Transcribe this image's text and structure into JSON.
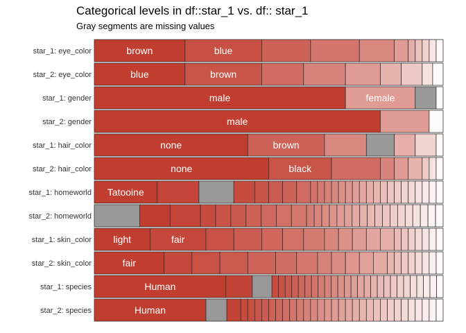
{
  "chart_data": {
    "type": "stacked-bar-horizontal-proportion",
    "title": "Categorical levels in df::star_1 vs. df:: star_1",
    "subtitle": "Gray segments are missing values",
    "xlim": [
      0,
      1
    ],
    "colors": {
      "base": "#c0392b",
      "missing": "#999999",
      "border": "#333333",
      "text_dark": "#ffffff",
      "text_light": "#777777"
    },
    "rows": [
      {
        "label": "star_1: eye_color",
        "segments": [
          {
            "value": 0.26,
            "label": "brown"
          },
          {
            "value": 0.22,
            "label": "blue"
          },
          {
            "value": 0.14
          },
          {
            "value": 0.14
          },
          {
            "value": 0.1
          },
          {
            "value": 0.04
          },
          {
            "value": 0.02
          },
          {
            "value": 0.02
          },
          {
            "value": 0.02
          },
          {
            "value": 0.02
          },
          {
            "value": 0.02
          }
        ]
      },
      {
        "label": "star_2: eye_color",
        "segments": [
          {
            "value": 0.26,
            "label": "blue"
          },
          {
            "value": 0.22,
            "label": "brown"
          },
          {
            "value": 0.12
          },
          {
            "value": 0.12
          },
          {
            "value": 0.1
          },
          {
            "value": 0.06
          },
          {
            "value": 0.06
          },
          {
            "value": 0.03
          },
          {
            "value": 0.03
          }
        ]
      },
      {
        "label": "star_1: gender",
        "segments": [
          {
            "value": 0.72,
            "label": "male"
          },
          {
            "value": 0.2,
            "label": "female"
          },
          {
            "value": 0.06,
            "missing": true
          },
          {
            "value": 0.02
          }
        ]
      },
      {
        "label": "star_2: gender",
        "segments": [
          {
            "value": 0.82,
            "label": "male"
          },
          {
            "value": 0.14
          },
          {
            "value": 0.04
          }
        ]
      },
      {
        "label": "star_1: hair_color",
        "segments": [
          {
            "value": 0.44,
            "label": "none"
          },
          {
            "value": 0.22,
            "label": "brown"
          },
          {
            "value": 0.12
          },
          {
            "value": 0.08,
            "missing": true
          },
          {
            "value": 0.06
          },
          {
            "value": 0.06
          },
          {
            "value": 0.02
          }
        ]
      },
      {
        "label": "star_2: hair_color",
        "segments": [
          {
            "value": 0.5,
            "label": "none"
          },
          {
            "value": 0.18,
            "label": "black"
          },
          {
            "value": 0.14
          },
          {
            "value": 0.04
          },
          {
            "value": 0.04
          },
          {
            "value": 0.04
          },
          {
            "value": 0.02
          },
          {
            "value": 0.02
          },
          {
            "value": 0.02
          }
        ]
      },
      {
        "label": "star_1: homeworld",
        "segments": [
          {
            "value": 0.18,
            "label": "Tatooine"
          },
          {
            "value": 0.12
          },
          {
            "value": 0.1,
            "missing": true
          },
          {
            "value": 0.06
          },
          {
            "value": 0.04
          },
          {
            "value": 0.04
          },
          {
            "value": 0.04
          },
          {
            "value": 0.04
          },
          {
            "value": 0.02
          },
          {
            "value": 0.02
          },
          {
            "value": 0.02
          },
          {
            "value": 0.02
          },
          {
            "value": 0.02
          },
          {
            "value": 0.02
          },
          {
            "value": 0.02
          },
          {
            "value": 0.02
          },
          {
            "value": 0.02
          },
          {
            "value": 0.02
          },
          {
            "value": 0.02
          },
          {
            "value": 0.02
          },
          {
            "value": 0.02
          },
          {
            "value": 0.02
          },
          {
            "value": 0.02
          },
          {
            "value": 0.02
          },
          {
            "value": 0.02
          },
          {
            "value": 0.02
          },
          {
            "value": 0.02
          }
        ]
      },
      {
        "label": "star_2: homeworld",
        "segments": [
          {
            "value": 0.12,
            "missing": true
          },
          {
            "value": 0.08
          },
          {
            "value": 0.08
          },
          {
            "value": 0.04
          },
          {
            "value": 0.04
          },
          {
            "value": 0.04
          },
          {
            "value": 0.04
          },
          {
            "value": 0.04
          },
          {
            "value": 0.04
          },
          {
            "value": 0.04
          },
          {
            "value": 0.02
          },
          {
            "value": 0.02
          },
          {
            "value": 0.02
          },
          {
            "value": 0.02
          },
          {
            "value": 0.02
          },
          {
            "value": 0.02
          },
          {
            "value": 0.02
          },
          {
            "value": 0.02
          },
          {
            "value": 0.02
          },
          {
            "value": 0.02
          },
          {
            "value": 0.02
          },
          {
            "value": 0.02
          },
          {
            "value": 0.02
          },
          {
            "value": 0.02
          },
          {
            "value": 0.02
          },
          {
            "value": 0.02
          },
          {
            "value": 0.02
          },
          {
            "value": 0.02
          }
        ]
      },
      {
        "label": "star_1: skin_color",
        "segments": [
          {
            "value": 0.16,
            "label": "light"
          },
          {
            "value": 0.16,
            "label": "fair"
          },
          {
            "value": 0.08
          },
          {
            "value": 0.08
          },
          {
            "value": 0.06
          },
          {
            "value": 0.06
          },
          {
            "value": 0.06
          },
          {
            "value": 0.04
          },
          {
            "value": 0.04
          },
          {
            "value": 0.04
          },
          {
            "value": 0.04
          },
          {
            "value": 0.04
          },
          {
            "value": 0.02
          },
          {
            "value": 0.02
          },
          {
            "value": 0.02
          },
          {
            "value": 0.02
          },
          {
            "value": 0.02
          },
          {
            "value": 0.02
          },
          {
            "value": 0.02
          }
        ]
      },
      {
        "label": "star_2: skin_color",
        "segments": [
          {
            "value": 0.2,
            "label": "fair"
          },
          {
            "value": 0.08
          },
          {
            "value": 0.08
          },
          {
            "value": 0.08
          },
          {
            "value": 0.08
          },
          {
            "value": 0.06
          },
          {
            "value": 0.06
          },
          {
            "value": 0.04
          },
          {
            "value": 0.04
          },
          {
            "value": 0.04
          },
          {
            "value": 0.04
          },
          {
            "value": 0.04
          },
          {
            "value": 0.02
          },
          {
            "value": 0.02
          },
          {
            "value": 0.02
          },
          {
            "value": 0.02
          },
          {
            "value": 0.02
          },
          {
            "value": 0.02
          },
          {
            "value": 0.02
          },
          {
            "value": 0.02
          }
        ]
      },
      {
        "label": "star_1: species",
        "segments": [
          {
            "value": 0.4,
            "label": "Human"
          },
          {
            "value": 0.08
          },
          {
            "value": 0.06,
            "missing": true
          },
          {
            "value": 0.02
          },
          {
            "value": 0.02
          },
          {
            "value": 0.02
          },
          {
            "value": 0.02
          },
          {
            "value": 0.02
          },
          {
            "value": 0.02
          },
          {
            "value": 0.02
          },
          {
            "value": 0.02
          },
          {
            "value": 0.02
          },
          {
            "value": 0.02
          },
          {
            "value": 0.02
          },
          {
            "value": 0.02
          },
          {
            "value": 0.02
          },
          {
            "value": 0.02
          },
          {
            "value": 0.02
          },
          {
            "value": 0.02
          },
          {
            "value": 0.02
          },
          {
            "value": 0.02
          },
          {
            "value": 0.02
          },
          {
            "value": 0.02
          },
          {
            "value": 0.02
          },
          {
            "value": 0.02
          },
          {
            "value": 0.02
          },
          {
            "value": 0.02
          },
          {
            "value": 0.02
          },
          {
            "value": 0.02
          }
        ]
      },
      {
        "label": "star_2: species",
        "segments": [
          {
            "value": 0.32,
            "label": "Human"
          },
          {
            "value": 0.06,
            "missing": true
          },
          {
            "value": 0.04
          },
          {
            "value": 0.02
          },
          {
            "value": 0.02
          },
          {
            "value": 0.02
          },
          {
            "value": 0.02
          },
          {
            "value": 0.02
          },
          {
            "value": 0.02
          },
          {
            "value": 0.02
          },
          {
            "value": 0.02
          },
          {
            "value": 0.02
          },
          {
            "value": 0.02
          },
          {
            "value": 0.02
          },
          {
            "value": 0.02
          },
          {
            "value": 0.02
          },
          {
            "value": 0.02
          },
          {
            "value": 0.02
          },
          {
            "value": 0.02
          },
          {
            "value": 0.02
          },
          {
            "value": 0.02
          },
          {
            "value": 0.02
          },
          {
            "value": 0.02
          },
          {
            "value": 0.02
          },
          {
            "value": 0.02
          },
          {
            "value": 0.02
          },
          {
            "value": 0.02
          },
          {
            "value": 0.02
          },
          {
            "value": 0.02
          },
          {
            "value": 0.02
          },
          {
            "value": 0.02
          },
          {
            "value": 0.02
          }
        ]
      }
    ]
  }
}
